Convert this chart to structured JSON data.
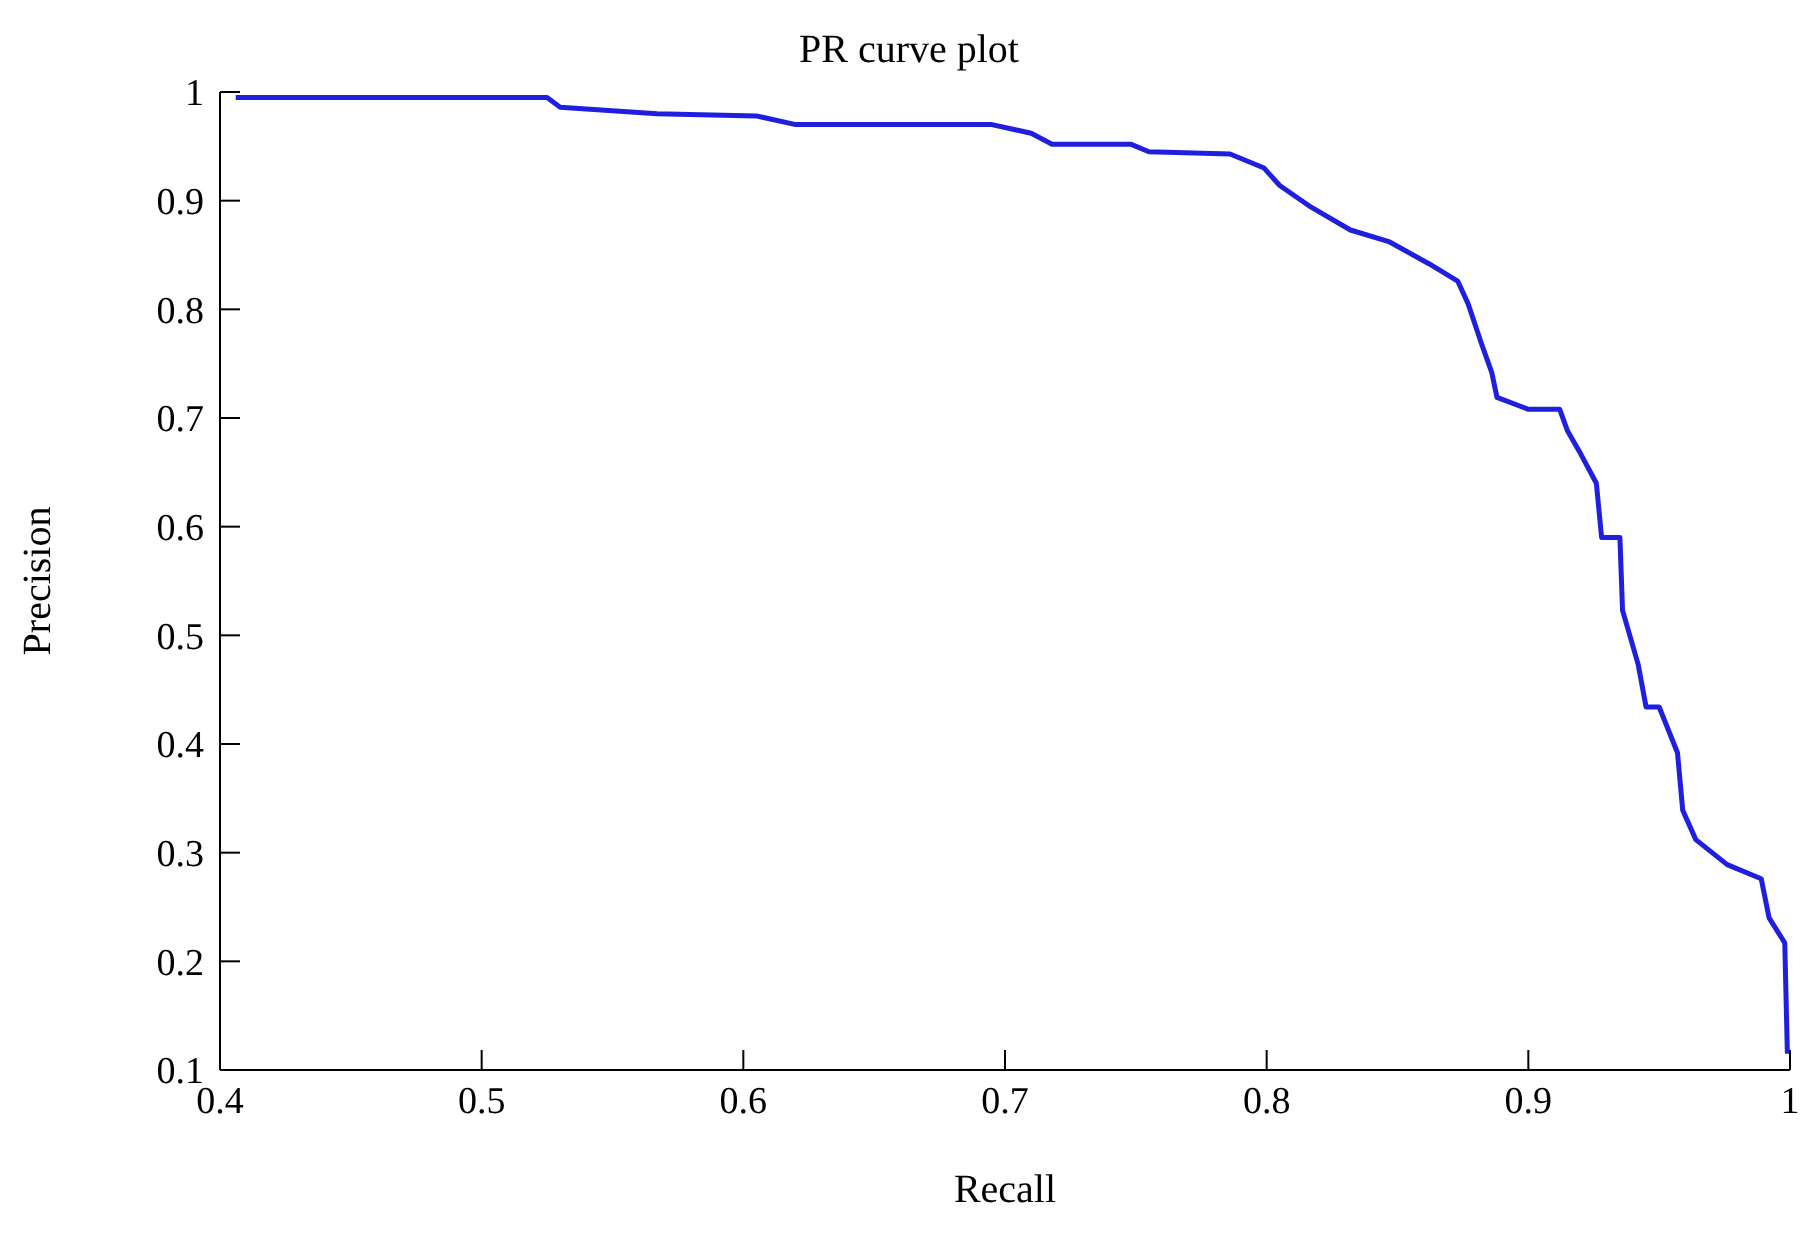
{
  "chart_data": {
    "type": "line",
    "title": "PR curve plot",
    "xlabel": "Recall",
    "ylabel": "Precision",
    "xlim": [
      0.4,
      1
    ],
    "ylim": [
      0.1,
      1
    ],
    "xticks": [
      0.4,
      0.5,
      0.6,
      0.7,
      0.8,
      0.9,
      1
    ],
    "yticks": [
      0.1,
      0.2,
      0.3,
      0.4,
      0.5,
      0.6,
      0.7,
      0.8,
      0.9,
      1
    ],
    "grid": false,
    "legend": false,
    "marker": "none",
    "line_style": "solid",
    "series": [
      {
        "color": "#1f1fe0",
        "x": [
          0.406,
          0.525,
          0.53,
          0.567,
          0.605,
          0.62,
          0.695,
          0.71,
          0.718,
          0.748,
          0.755,
          0.786,
          0.799,
          0.805,
          0.817,
          0.832,
          0.847,
          0.862,
          0.873,
          0.877,
          0.882,
          0.886,
          0.888,
          0.9,
          0.912,
          0.915,
          0.92,
          0.926,
          0.928,
          0.935,
          0.936,
          0.942,
          0.945,
          0.95,
          0.957,
          0.959,
          0.964,
          0.976,
          0.989,
          0.992,
          0.998,
          0.999
        ],
        "values": [
          0.995,
          0.995,
          0.986,
          0.98,
          0.978,
          0.97,
          0.97,
          0.962,
          0.952,
          0.952,
          0.945,
          0.943,
          0.93,
          0.914,
          0.894,
          0.873,
          0.862,
          0.842,
          0.826,
          0.805,
          0.769,
          0.742,
          0.719,
          0.708,
          0.708,
          0.688,
          0.667,
          0.64,
          0.59,
          0.59,
          0.523,
          0.473,
          0.434,
          0.434,
          0.392,
          0.339,
          0.312,
          0.289,
          0.276,
          0.24,
          0.217,
          0.115
        ]
      }
    ]
  }
}
